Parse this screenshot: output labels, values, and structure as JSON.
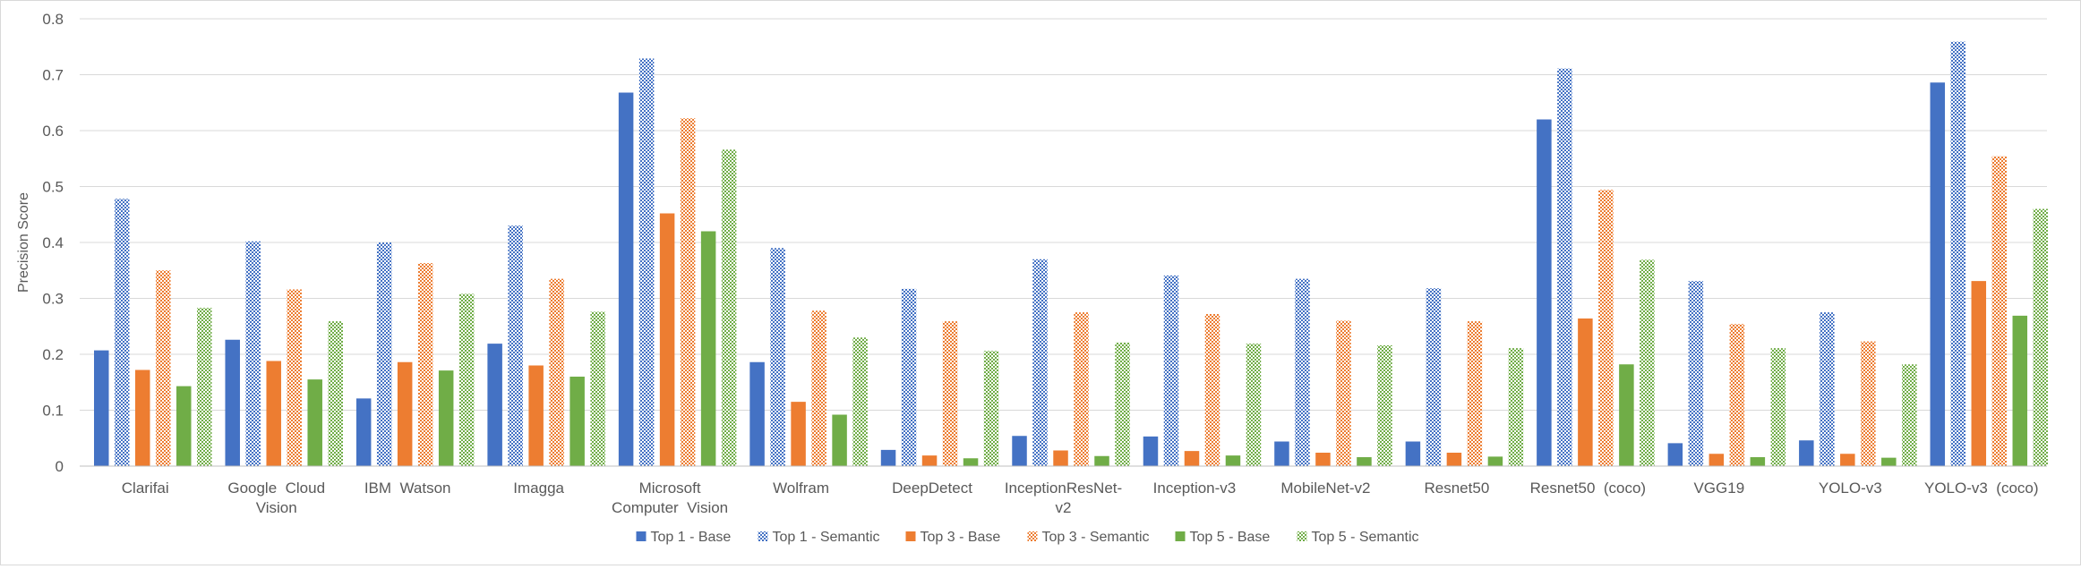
{
  "chart_data": {
    "type": "bar",
    "title": "",
    "xlabel": "",
    "ylabel": "Precision Score",
    "ylim": [
      0,
      0.8
    ],
    "yticks": [
      "0",
      "0.1",
      "0.2",
      "0.3",
      "0.4",
      "0.5",
      "0.6",
      "0.7",
      "0.8"
    ],
    "grid": true,
    "legend_position": "bottom",
    "categories": [
      [
        "Clarifai"
      ],
      [
        "Google  Cloud",
        "Vision"
      ],
      [
        "IBM  Watson"
      ],
      [
        "Imagga"
      ],
      [
        "Microsoft",
        "Computer  Vision"
      ],
      [
        "Wolfram"
      ],
      [
        "DeepDetect"
      ],
      [
        "InceptionResNet-",
        "v2"
      ],
      [
        "Inception-v3"
      ],
      [
        "MobileNet-v2"
      ],
      [
        "Resnet50"
      ],
      [
        "Resnet50  (coco)"
      ],
      [
        "VGG19"
      ],
      [
        "YOLO-v3"
      ],
      [
        "YOLO-v3  (coco)"
      ]
    ],
    "series": [
      {
        "name": "Top 1 - Base",
        "color": "#4472c4",
        "pattern": "solid",
        "values": [
          0.207,
          0.226,
          0.121,
          0.219,
          0.668,
          0.186,
          0.029,
          0.054,
          0.053,
          0.044,
          0.044,
          0.62,
          0.041,
          0.046,
          0.686
        ]
      },
      {
        "name": "Top 1 - Semantic",
        "color": "#4472c4",
        "pattern": "checker",
        "values": [
          0.478,
          0.402,
          0.4,
          0.43,
          0.729,
          0.39,
          0.317,
          0.37,
          0.341,
          0.335,
          0.318,
          0.711,
          0.331,
          0.275,
          0.759
        ]
      },
      {
        "name": "Top 3 - Base",
        "color": "#ed7d31",
        "pattern": "solid",
        "values": [
          0.172,
          0.188,
          0.186,
          0.18,
          0.452,
          0.115,
          0.019,
          0.028,
          0.027,
          0.024,
          0.024,
          0.264,
          0.022,
          0.022,
          0.331
        ]
      },
      {
        "name": "Top 3 - Semantic",
        "color": "#ed7d31",
        "pattern": "checker",
        "values": [
          0.35,
          0.316,
          0.363,
          0.335,
          0.622,
          0.278,
          0.259,
          0.275,
          0.272,
          0.26,
          0.259,
          0.494,
          0.254,
          0.223,
          0.554
        ]
      },
      {
        "name": "Top 5 - Base",
        "color": "#70ad47",
        "pattern": "solid",
        "values": [
          0.143,
          0.155,
          0.171,
          0.16,
          0.42,
          0.092,
          0.014,
          0.018,
          0.019,
          0.016,
          0.017,
          0.182,
          0.016,
          0.015,
          0.269
        ]
      },
      {
        "name": "Top 5 - Semantic",
        "color": "#70ad47",
        "pattern": "checker",
        "values": [
          0.283,
          0.259,
          0.308,
          0.276,
          0.566,
          0.23,
          0.206,
          0.221,
          0.219,
          0.216,
          0.211,
          0.369,
          0.211,
          0.182,
          0.46
        ]
      }
    ]
  }
}
